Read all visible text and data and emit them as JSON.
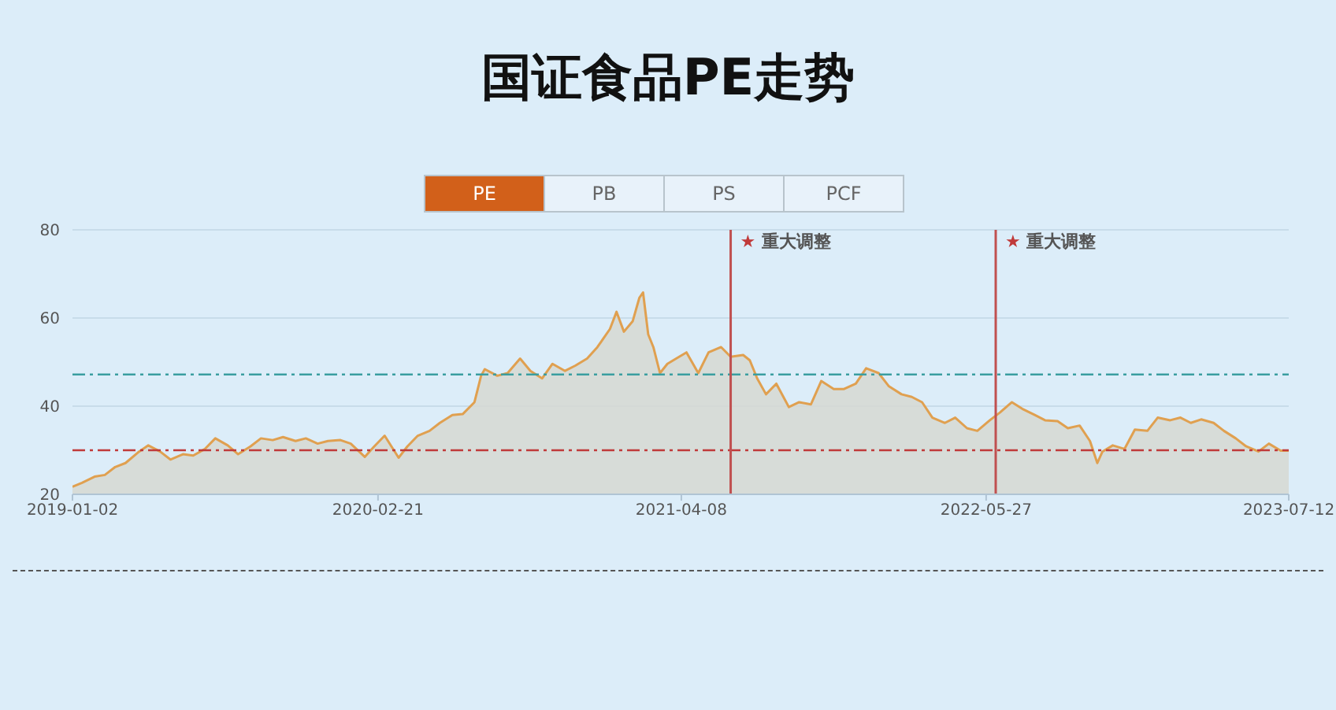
{
  "chart_data": {
    "type": "area",
    "title": "国证食品PE走势",
    "annotations": [
      "PE",
      "PB",
      "PS",
      "PCF"
    ],
    "x": [
      "2019-01-02",
      "2019-01-15",
      "2019-02-01",
      "2019-02-15",
      "2019-03-01",
      "2019-03-15",
      "2019-04-01",
      "2019-04-15",
      "2019-05-01",
      "2019-05-15",
      "2019-06-01",
      "2019-06-15",
      "2019-07-01",
      "2019-07-15",
      "2019-08-01",
      "2019-08-15",
      "2019-09-01",
      "2019-09-15",
      "2019-10-01",
      "2019-10-15",
      "2019-11-01",
      "2019-11-15",
      "2019-12-01",
      "2019-12-15",
      "2020-01-01",
      "2020-01-15",
      "2020-02-03",
      "2020-02-15",
      "2020-03-01",
      "2020-03-20",
      "2020-04-01",
      "2020-04-15",
      "2020-05-01",
      "2020-05-15",
      "2020-06-01",
      "2020-06-15",
      "2020-07-01",
      "2020-07-10",
      "2020-07-15",
      "2020-08-01",
      "2020-08-15",
      "2020-09-01",
      "2020-09-15",
      "2020-10-01",
      "2020-10-15",
      "2020-11-01",
      "2020-11-15",
      "2020-12-01",
      "2020-12-15",
      "2021-01-01",
      "2021-01-10",
      "2021-01-20",
      "2021-02-01",
      "2021-02-10",
      "2021-02-15",
      "2021-02-22",
      "2021-03-01",
      "2021-03-10",
      "2021-03-20",
      "2021-04-01",
      "2021-04-15",
      "2021-05-01",
      "2021-05-15",
      "2021-06-01",
      "2021-06-14",
      "2021-07-01",
      "2021-07-10",
      "2021-07-20",
      "2021-08-01",
      "2021-08-15",
      "2021-09-01",
      "2021-09-15",
      "2021-10-01",
      "2021-10-15",
      "2021-11-01",
      "2021-11-15",
      "2021-12-01",
      "2021-12-15",
      "2022-01-01",
      "2022-01-15",
      "2022-02-01",
      "2022-02-15",
      "2022-03-01",
      "2022-03-15",
      "2022-04-01",
      "2022-04-15",
      "2022-05-01",
      "2022-05-15",
      "2022-06-01",
      "2022-06-15",
      "2022-07-01",
      "2022-07-15",
      "2022-08-01",
      "2022-08-15",
      "2022-09-01",
      "2022-09-15",
      "2022-10-01",
      "2022-10-15",
      "2022-10-25",
      "2022-11-01",
      "2022-11-15",
      "2022-12-01",
      "2022-12-15",
      "2023-01-01",
      "2023-01-15",
      "2023-02-01",
      "2023-02-15",
      "2023-03-01",
      "2023-03-15",
      "2023-04-01",
      "2023-04-15",
      "2023-05-01",
      "2023-05-15",
      "2023-06-01",
      "2023-06-15",
      "2023-07-01",
      "2023-07-12"
    ],
    "series": [
      {
        "color": "#e0a050",
        "values": [
          21.7,
          22.6,
          24,
          24.4,
          26.2,
          27.1,
          29.5,
          31.1,
          29.7,
          27.9,
          29.1,
          28.8,
          30.3,
          32.7,
          31.1,
          29.1,
          30.9,
          32.7,
          32.3,
          33,
          32.1,
          32.7,
          31.5,
          32.1,
          32.3,
          31.5,
          28.5,
          30.7,
          33.3,
          28.3,
          30.9,
          33.3,
          34.4,
          36.2,
          38,
          38.2,
          40.9,
          46.9,
          48.4,
          46.9,
          47.5,
          50.8,
          48,
          46.3,
          49.6,
          48,
          49.2,
          50.8,
          53.4,
          57.5,
          61.4,
          56.9,
          59.3,
          64.6,
          65.8,
          56.3,
          53.4,
          47.5,
          49.6,
          50.8,
          52.2,
          47.5,
          52.2,
          53.4,
          51.2,
          51.6,
          50.4,
          46.3,
          42.7,
          45.1,
          39.8,
          40.9,
          40.4,
          45.7,
          43.9,
          43.9,
          45.1,
          48.6,
          47.5,
          44.5,
          42.7,
          42.1,
          40.9,
          37.4,
          36.2,
          37.4,
          35,
          34.4,
          36.8,
          38.6,
          40.9,
          39.4,
          38,
          36.8,
          36.6,
          35,
          35.6,
          32.1,
          27.1,
          29.7,
          31.1,
          30.3,
          34.7,
          34.4,
          37.4,
          36.8,
          37.4,
          36.2,
          37,
          36.2,
          34.4,
          32.7,
          30.9,
          29.7,
          31.5,
          29.9,
          29.9
        ]
      }
    ],
    "xlim": [
      "2019-01-02",
      "2023-07-12"
    ],
    "xticks": [
      "2019-01-02",
      "2020-02-21",
      "2021-04-08",
      "2022-05-27",
      "2023-07-12"
    ],
    "ylim": [
      20,
      80
    ],
    "yticks": [
      20,
      40,
      60,
      80
    ],
    "grid": "y",
    "legend": false,
    "ref_lines": [
      {
        "axis": "y",
        "value": 47.2,
        "color": "#3a9ea0",
        "line_style": "dashed"
      },
      {
        "axis": "y",
        "value": 30,
        "color": "#c03a3a",
        "line_style": "dashed"
      },
      {
        "axis": "x",
        "value": "2021-06-14",
        "label": "★ 重大调整",
        "color": "#c05050",
        "line_style": "solid"
      },
      {
        "axis": "x",
        "value": "2022-06-09",
        "label": "★ 重大调整",
        "color": "#c05050",
        "line_style": "solid"
      }
    ]
  }
}
